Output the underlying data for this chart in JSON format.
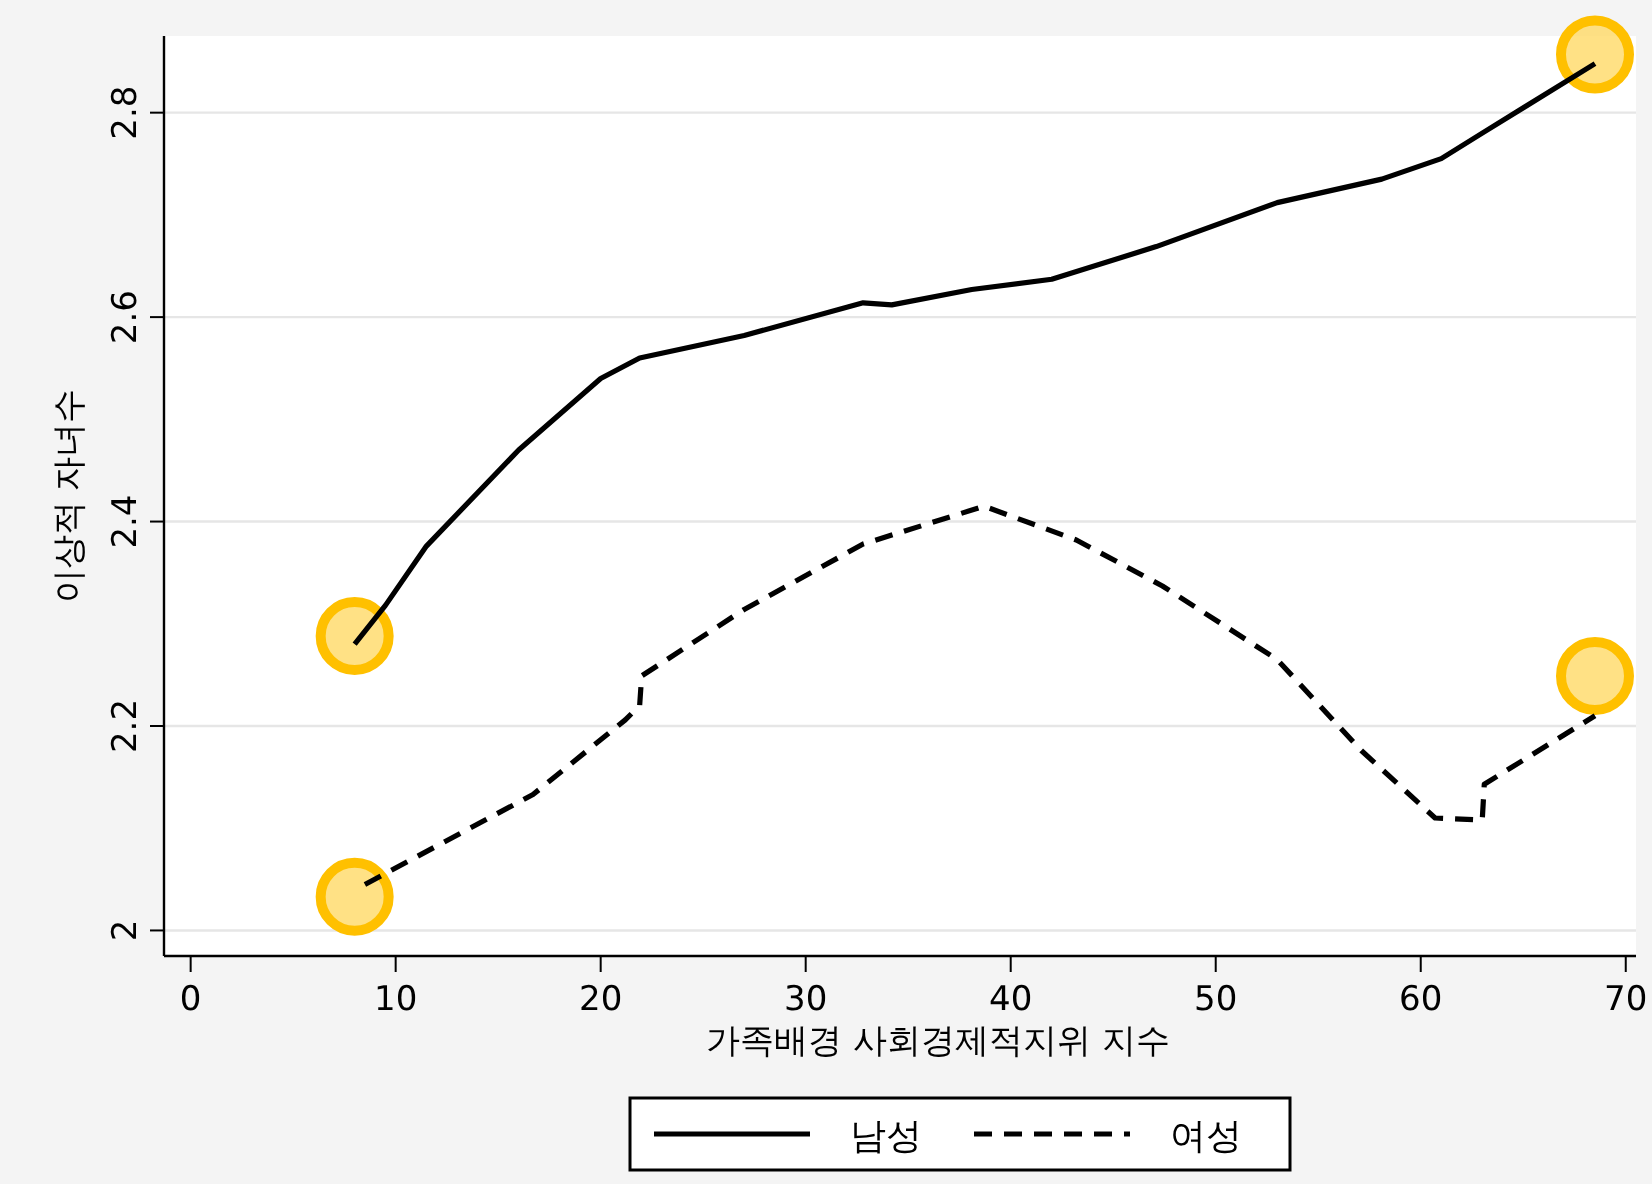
{
  "chart_data": {
    "type": "line",
    "xlabel": "가족배경 사회경제적지위 지수",
    "ylabel": "이상적 자녀수",
    "xlim": [
      -1.3,
      70.5
    ],
    "ylim": [
      1.975,
      2.875
    ],
    "xticks": [
      0,
      10,
      20,
      30,
      40,
      50,
      60,
      70
    ],
    "yticks": [
      2,
      2.2,
      2.4,
      2.6,
      2.8
    ],
    "grid": "y",
    "legend": "bottom",
    "series": [
      {
        "name": "남성",
        "color": "#000000",
        "line_style": "solid",
        "x": [
          8,
          9.5,
          11.5,
          16,
          20,
          21.9,
          27,
          32.8,
          34.2,
          38.1,
          42,
          47.1,
          53,
          58.1,
          61,
          63,
          68.5
        ],
        "values": [
          2.28,
          2.318,
          2.376,
          2.47,
          2.54,
          2.56,
          2.582,
          2.614,
          2.612,
          2.627,
          2.637,
          2.669,
          2.712,
          2.735,
          2.755,
          2.78,
          2.848
        ]
      },
      {
        "name": "여성",
        "color": "#000000",
        "line_style": "dashed",
        "x": [
          8.5,
          16.7,
          21.2,
          21.9,
          22,
          27,
          32.8,
          38.7,
          43.2,
          47.4,
          53,
          57.1,
          60.7,
          63,
          63.1,
          68.5
        ],
        "values": [
          2.045,
          2.133,
          2.206,
          2.22,
          2.249,
          2.314,
          2.378,
          2.415,
          2.382,
          2.337,
          2.265,
          2.176,
          2.11,
          2.108,
          2.143,
          2.21
        ]
      },
      {
        "type": "scatter",
        "color": "#ffc000",
        "marker": "circle",
        "x": [
          8,
          68.5,
          8,
          68.5
        ],
        "values": [
          2.288,
          2.857,
          2.033,
          2.249
        ]
      }
    ]
  }
}
